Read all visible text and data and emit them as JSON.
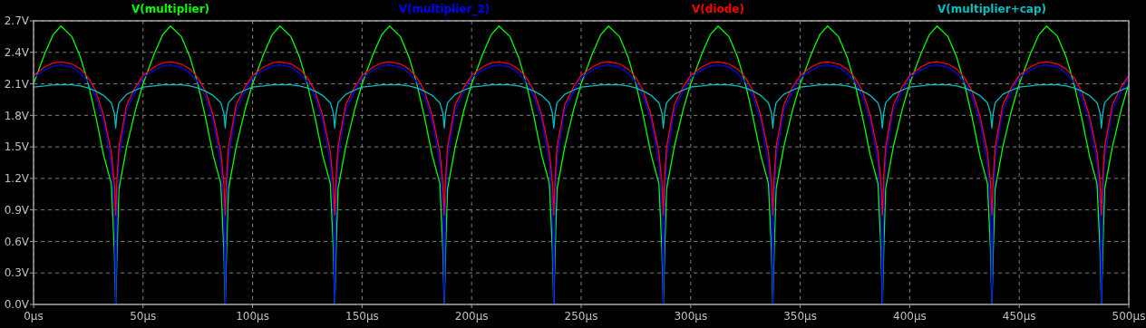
{
  "chart_data": {
    "type": "line",
    "legend": "top",
    "grid": true,
    "line_style": "solid",
    "marker": "none",
    "x": [
      0,
      5,
      9,
      12.5,
      17.5,
      21.5,
      25,
      28.5,
      32,
      35.5,
      36.9,
      37.5,
      38.1,
      39,
      42.5,
      46.5,
      50,
      55,
      59,
      62.5,
      67.5,
      71.5,
      75,
      78.5,
      82,
      85.5,
      86.9,
      87.5,
      88.1,
      89,
      92.5,
      96.5,
      100,
      105,
      109,
      112.5,
      117.5,
      121.5,
      125,
      128.5,
      132,
      135.5,
      136.9,
      137.5,
      138.1,
      139,
      142.5,
      146.5,
      150,
      155,
      159,
      162.5,
      167.5,
      171.5,
      175,
      178.5,
      182,
      185.5,
      186.9,
      187.5,
      188.1,
      189,
      192.5,
      196.5,
      200,
      205,
      209,
      212.5,
      217.5,
      221.5,
      225,
      228.5,
      232,
      235.5,
      236.9,
      237.5,
      238.1,
      239,
      242.5,
      246.5,
      250,
      255,
      259,
      262.5,
      267.5,
      271.5,
      275,
      278.5,
      282,
      285.5,
      286.9,
      287.5,
      288.1,
      289,
      292.5,
      296.5,
      300,
      305,
      309,
      312.5,
      317.5,
      321.5,
      325,
      328.5,
      332,
      335.5,
      336.9,
      337.5,
      338.1,
      339,
      342.5,
      346.5,
      350,
      355,
      359,
      362.5,
      367.5,
      371.5,
      375,
      378.5,
      382,
      385.5,
      386.9,
      387.5,
      388.1,
      389,
      392.5,
      396.5,
      400,
      405,
      409,
      412.5,
      417.5,
      421.5,
      425,
      428.5,
      432,
      435.5,
      436.9,
      437.5,
      438.1,
      439,
      442.5,
      446.5,
      450,
      455,
      459,
      462.5,
      467.5,
      471.5,
      475,
      478.5,
      482,
      485.5,
      486.9,
      487.5,
      488.1,
      489,
      492.5,
      496.5,
      500
    ],
    "xlim": [
      0,
      500
    ],
    "xticks": [
      {
        "value": 0,
        "label": "0µs"
      },
      {
        "value": 50,
        "label": "50µs"
      },
      {
        "value": 100,
        "label": "100µs"
      },
      {
        "value": 150,
        "label": "150µs"
      },
      {
        "value": 200,
        "label": "200µs"
      },
      {
        "value": 250,
        "label": "250µs"
      },
      {
        "value": 300,
        "label": "300µs"
      },
      {
        "value": 350,
        "label": "350µs"
      },
      {
        "value": 400,
        "label": "400µs"
      },
      {
        "value": 450,
        "label": "450µs"
      },
      {
        "value": 500,
        "label": "500µs"
      }
    ],
    "ylim": [
      0,
      2.7
    ],
    "yticks": [
      {
        "value": 0,
        "label": "0.0V"
      },
      {
        "value": 0.3,
        "label": "0.3V"
      },
      {
        "value": 0.6,
        "label": "0.6V"
      },
      {
        "value": 0.9,
        "label": "0.9V"
      },
      {
        "value": 1.2,
        "label": "1.2V"
      },
      {
        "value": 1.5,
        "label": "1.5V"
      },
      {
        "value": 1.8,
        "label": "1.8V"
      },
      {
        "value": 2.1,
        "label": "2.1V"
      },
      {
        "value": 2.4,
        "label": "2.4V"
      },
      {
        "value": 2.7,
        "label": "2.7V"
      }
    ],
    "series": [
      {
        "name": "V(multiplier)",
        "color": "#00ff00",
        "values": [
          2.1,
          2.38,
          2.57,
          2.65,
          2.55,
          2.35,
          2.1,
          1.78,
          1.42,
          1.15,
          0.5,
          0.0,
          0.5,
          1.1,
          1.5,
          1.85,
          2.1,
          2.38,
          2.57,
          2.65,
          2.55,
          2.35,
          2.1,
          1.78,
          1.42,
          1.15,
          0.5,
          0.0,
          0.5,
          1.1,
          1.5,
          1.85,
          2.1,
          2.38,
          2.57,
          2.65,
          2.55,
          2.35,
          2.1,
          1.78,
          1.42,
          1.15,
          0.5,
          0.0,
          0.5,
          1.1,
          1.5,
          1.85,
          2.1,
          2.38,
          2.57,
          2.65,
          2.55,
          2.35,
          2.1,
          1.78,
          1.42,
          1.15,
          0.5,
          0.0,
          0.5,
          1.1,
          1.5,
          1.85,
          2.1,
          2.38,
          2.57,
          2.65,
          2.55,
          2.35,
          2.1,
          1.78,
          1.42,
          1.15,
          0.5,
          0.0,
          0.5,
          1.1,
          1.5,
          1.85,
          2.1,
          2.38,
          2.57,
          2.65,
          2.55,
          2.35,
          2.1,
          1.78,
          1.42,
          1.15,
          0.5,
          0.0,
          0.5,
          1.1,
          1.5,
          1.85,
          2.1,
          2.38,
          2.57,
          2.65,
          2.55,
          2.35,
          2.1,
          1.78,
          1.42,
          1.15,
          0.5,
          0.0,
          0.5,
          1.1,
          1.5,
          1.85,
          2.1,
          2.38,
          2.57,
          2.65,
          2.55,
          2.35,
          2.1,
          1.78,
          1.42,
          1.15,
          0.5,
          0.0,
          0.5,
          1.1,
          1.5,
          1.85,
          2.1,
          2.38,
          2.57,
          2.65,
          2.55,
          2.35,
          2.1,
          1.78,
          1.42,
          1.15,
          0.5,
          0.0,
          0.5,
          1.1,
          1.5,
          1.85,
          2.1,
          2.38,
          2.57,
          2.65,
          2.55,
          2.35,
          2.1,
          1.78,
          1.42,
          1.15,
          0.5,
          0.0,
          0.5,
          1.1,
          1.5,
          1.85,
          2.1
        ]
      },
      {
        "name": "V(multiplier_2)",
        "color": "#0000ff",
        "values": [
          2.16,
          2.23,
          2.27,
          2.28,
          2.26,
          2.2,
          2.12,
          1.98,
          1.75,
          1.35,
          0.9,
          0.0,
          0.9,
          1.4,
          1.85,
          2.03,
          2.16,
          2.23,
          2.27,
          2.28,
          2.26,
          2.2,
          2.12,
          1.98,
          1.75,
          1.35,
          0.9,
          0.0,
          0.9,
          1.4,
          1.85,
          2.03,
          2.16,
          2.23,
          2.27,
          2.28,
          2.26,
          2.2,
          2.12,
          1.98,
          1.75,
          1.35,
          0.9,
          0.0,
          0.9,
          1.4,
          1.85,
          2.03,
          2.16,
          2.23,
          2.27,
          2.28,
          2.26,
          2.2,
          2.12,
          1.98,
          1.75,
          1.35,
          0.9,
          0.0,
          0.9,
          1.4,
          1.85,
          2.03,
          2.16,
          2.23,
          2.27,
          2.28,
          2.26,
          2.2,
          2.12,
          1.98,
          1.75,
          1.35,
          0.9,
          0.0,
          0.9,
          1.4,
          1.85,
          2.03,
          2.16,
          2.23,
          2.27,
          2.28,
          2.26,
          2.2,
          2.12,
          1.98,
          1.75,
          1.35,
          0.9,
          0.0,
          0.9,
          1.4,
          1.85,
          2.03,
          2.16,
          2.23,
          2.27,
          2.28,
          2.26,
          2.2,
          2.12,
          1.98,
          1.75,
          1.35,
          0.9,
          0.0,
          0.9,
          1.4,
          1.85,
          2.03,
          2.16,
          2.23,
          2.27,
          2.28,
          2.26,
          2.2,
          2.12,
          1.98,
          1.75,
          1.35,
          0.9,
          0.0,
          0.9,
          1.4,
          1.85,
          2.03,
          2.16,
          2.23,
          2.27,
          2.28,
          2.26,
          2.2,
          2.12,
          1.98,
          1.75,
          1.35,
          0.9,
          0.0,
          0.9,
          1.4,
          1.85,
          2.03,
          2.16,
          2.23,
          2.27,
          2.28,
          2.26,
          2.2,
          2.12,
          1.98,
          1.75,
          1.35,
          0.9,
          0.0,
          0.9,
          1.4,
          1.85,
          2.03,
          2.16
        ]
      },
      {
        "name": "V(diode)",
        "color": "#ff0000",
        "values": [
          2.18,
          2.26,
          2.3,
          2.31,
          2.29,
          2.24,
          2.16,
          2.03,
          1.8,
          1.45,
          1.15,
          0.85,
          1.2,
          1.5,
          1.9,
          2.07,
          2.18,
          2.26,
          2.3,
          2.31,
          2.29,
          2.24,
          2.16,
          2.03,
          1.8,
          1.45,
          1.15,
          0.85,
          1.2,
          1.5,
          1.9,
          2.07,
          2.18,
          2.26,
          2.3,
          2.31,
          2.29,
          2.24,
          2.16,
          2.03,
          1.8,
          1.45,
          1.15,
          0.85,
          1.2,
          1.5,
          1.9,
          2.07,
          2.18,
          2.26,
          2.3,
          2.31,
          2.29,
          2.24,
          2.16,
          2.03,
          1.8,
          1.45,
          1.15,
          0.85,
          1.2,
          1.5,
          1.9,
          2.07,
          2.18,
          2.26,
          2.3,
          2.31,
          2.29,
          2.24,
          2.16,
          2.03,
          1.8,
          1.45,
          1.15,
          0.85,
          1.2,
          1.5,
          1.9,
          2.07,
          2.18,
          2.26,
          2.3,
          2.31,
          2.29,
          2.24,
          2.16,
          2.03,
          1.8,
          1.45,
          1.15,
          0.85,
          1.2,
          1.5,
          1.9,
          2.07,
          2.18,
          2.26,
          2.3,
          2.31,
          2.29,
          2.24,
          2.16,
          2.03,
          1.8,
          1.45,
          1.15,
          0.85,
          1.2,
          1.5,
          1.9,
          2.07,
          2.18,
          2.26,
          2.3,
          2.31,
          2.29,
          2.24,
          2.16,
          2.03,
          1.8,
          1.45,
          1.15,
          0.85,
          1.2,
          1.5,
          1.9,
          2.07,
          2.18,
          2.26,
          2.3,
          2.31,
          2.29,
          2.24,
          2.16,
          2.03,
          1.8,
          1.45,
          1.15,
          0.85,
          1.2,
          1.5,
          1.9,
          2.07,
          2.18,
          2.26,
          2.3,
          2.31,
          2.29,
          2.24,
          2.16,
          2.03,
          1.8,
          1.45,
          1.15,
          0.85,
          1.2,
          1.5,
          1.9,
          2.07,
          2.18
        ]
      },
      {
        "name": "V(multiplier+cap)",
        "color": "#00c0c0",
        "values": [
          2.07,
          2.08,
          2.09,
          2.09,
          2.09,
          2.08,
          2.06,
          2.03,
          1.99,
          1.92,
          1.82,
          1.68,
          1.82,
          1.92,
          2.0,
          2.04,
          2.07,
          2.08,
          2.09,
          2.09,
          2.09,
          2.08,
          2.06,
          2.03,
          1.99,
          1.92,
          1.82,
          1.68,
          1.82,
          1.92,
          2.0,
          2.04,
          2.07,
          2.08,
          2.09,
          2.09,
          2.09,
          2.08,
          2.06,
          2.03,
          1.99,
          1.92,
          1.82,
          1.68,
          1.82,
          1.92,
          2.0,
          2.04,
          2.07,
          2.08,
          2.09,
          2.09,
          2.09,
          2.08,
          2.06,
          2.03,
          1.99,
          1.92,
          1.82,
          1.68,
          1.82,
          1.92,
          2.0,
          2.04,
          2.07,
          2.08,
          2.09,
          2.09,
          2.09,
          2.08,
          2.06,
          2.03,
          1.99,
          1.92,
          1.82,
          1.68,
          1.82,
          1.92,
          2.0,
          2.04,
          2.07,
          2.08,
          2.09,
          2.09,
          2.09,
          2.08,
          2.06,
          2.03,
          1.99,
          1.92,
          1.82,
          1.68,
          1.82,
          1.92,
          2.0,
          2.04,
          2.07,
          2.08,
          2.09,
          2.09,
          2.09,
          2.08,
          2.06,
          2.03,
          1.99,
          1.92,
          1.82,
          1.68,
          1.82,
          1.92,
          2.0,
          2.04,
          2.07,
          2.08,
          2.09,
          2.09,
          2.09,
          2.08,
          2.06,
          2.03,
          1.99,
          1.92,
          1.82,
          1.68,
          1.82,
          1.92,
          2.0,
          2.04,
          2.07,
          2.08,
          2.09,
          2.09,
          2.09,
          2.08,
          2.06,
          2.03,
          1.99,
          1.92,
          1.82,
          1.68,
          1.82,
          1.92,
          2.0,
          2.04,
          2.07,
          2.08,
          2.09,
          2.09,
          2.09,
          2.08,
          2.06,
          2.03,
          1.99,
          1.92,
          1.82,
          1.68,
          1.82,
          1.92,
          2.0,
          2.04,
          2.07
        ]
      }
    ]
  }
}
